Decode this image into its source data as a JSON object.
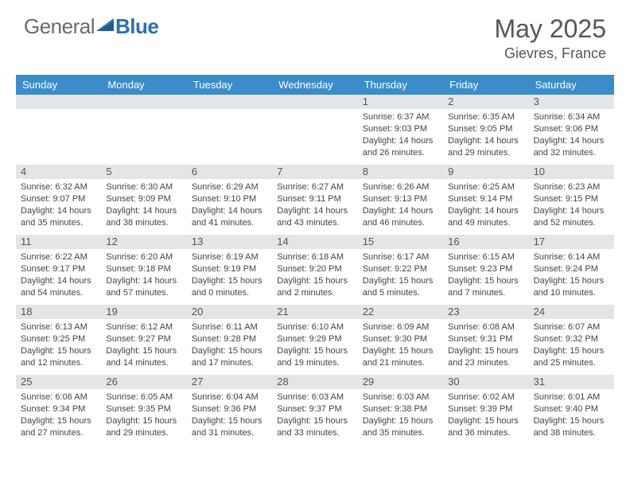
{
  "logo": {
    "general": "General",
    "blue": "Blue"
  },
  "title": "May 2025",
  "location": "Gievres, France",
  "colors": {
    "header_bar": "#3b8ccb",
    "day_bar": "#e4e5e6",
    "text": "#444444",
    "logo_gray": "#6a6a6a",
    "logo_blue": "#2b6fb0",
    "background": "#ffffff"
  },
  "weekdays": [
    "Sunday",
    "Monday",
    "Tuesday",
    "Wednesday",
    "Thursday",
    "Friday",
    "Saturday"
  ],
  "weeks": [
    [
      {
        "day": "",
        "sunrise": "",
        "sunset": "",
        "daylight": ""
      },
      {
        "day": "",
        "sunrise": "",
        "sunset": "",
        "daylight": ""
      },
      {
        "day": "",
        "sunrise": "",
        "sunset": "",
        "daylight": ""
      },
      {
        "day": "",
        "sunrise": "",
        "sunset": "",
        "daylight": ""
      },
      {
        "day": "1",
        "sunrise": "Sunrise: 6:37 AM",
        "sunset": "Sunset: 9:03 PM",
        "daylight": "Daylight: 14 hours and 26 minutes."
      },
      {
        "day": "2",
        "sunrise": "Sunrise: 6:35 AM",
        "sunset": "Sunset: 9:05 PM",
        "daylight": "Daylight: 14 hours and 29 minutes."
      },
      {
        "day": "3",
        "sunrise": "Sunrise: 6:34 AM",
        "sunset": "Sunset: 9:06 PM",
        "daylight": "Daylight: 14 hours and 32 minutes."
      }
    ],
    [
      {
        "day": "4",
        "sunrise": "Sunrise: 6:32 AM",
        "sunset": "Sunset: 9:07 PM",
        "daylight": "Daylight: 14 hours and 35 minutes."
      },
      {
        "day": "5",
        "sunrise": "Sunrise: 6:30 AM",
        "sunset": "Sunset: 9:09 PM",
        "daylight": "Daylight: 14 hours and 38 minutes."
      },
      {
        "day": "6",
        "sunrise": "Sunrise: 6:29 AM",
        "sunset": "Sunset: 9:10 PM",
        "daylight": "Daylight: 14 hours and 41 minutes."
      },
      {
        "day": "7",
        "sunrise": "Sunrise: 6:27 AM",
        "sunset": "Sunset: 9:11 PM",
        "daylight": "Daylight: 14 hours and 43 minutes."
      },
      {
        "day": "8",
        "sunrise": "Sunrise: 6:26 AM",
        "sunset": "Sunset: 9:13 PM",
        "daylight": "Daylight: 14 hours and 46 minutes."
      },
      {
        "day": "9",
        "sunrise": "Sunrise: 6:25 AM",
        "sunset": "Sunset: 9:14 PM",
        "daylight": "Daylight: 14 hours and 49 minutes."
      },
      {
        "day": "10",
        "sunrise": "Sunrise: 6:23 AM",
        "sunset": "Sunset: 9:15 PM",
        "daylight": "Daylight: 14 hours and 52 minutes."
      }
    ],
    [
      {
        "day": "11",
        "sunrise": "Sunrise: 6:22 AM",
        "sunset": "Sunset: 9:17 PM",
        "daylight": "Daylight: 14 hours and 54 minutes."
      },
      {
        "day": "12",
        "sunrise": "Sunrise: 6:20 AM",
        "sunset": "Sunset: 9:18 PM",
        "daylight": "Daylight: 14 hours and 57 minutes."
      },
      {
        "day": "13",
        "sunrise": "Sunrise: 6:19 AM",
        "sunset": "Sunset: 9:19 PM",
        "daylight": "Daylight: 15 hours and 0 minutes."
      },
      {
        "day": "14",
        "sunrise": "Sunrise: 6:18 AM",
        "sunset": "Sunset: 9:20 PM",
        "daylight": "Daylight: 15 hours and 2 minutes."
      },
      {
        "day": "15",
        "sunrise": "Sunrise: 6:17 AM",
        "sunset": "Sunset: 9:22 PM",
        "daylight": "Daylight: 15 hours and 5 minutes."
      },
      {
        "day": "16",
        "sunrise": "Sunrise: 6:15 AM",
        "sunset": "Sunset: 9:23 PM",
        "daylight": "Daylight: 15 hours and 7 minutes."
      },
      {
        "day": "17",
        "sunrise": "Sunrise: 6:14 AM",
        "sunset": "Sunset: 9:24 PM",
        "daylight": "Daylight: 15 hours and 10 minutes."
      }
    ],
    [
      {
        "day": "18",
        "sunrise": "Sunrise: 6:13 AM",
        "sunset": "Sunset: 9:25 PM",
        "daylight": "Daylight: 15 hours and 12 minutes."
      },
      {
        "day": "19",
        "sunrise": "Sunrise: 6:12 AM",
        "sunset": "Sunset: 9:27 PM",
        "daylight": "Daylight: 15 hours and 14 minutes."
      },
      {
        "day": "20",
        "sunrise": "Sunrise: 6:11 AM",
        "sunset": "Sunset: 9:28 PM",
        "daylight": "Daylight: 15 hours and 17 minutes."
      },
      {
        "day": "21",
        "sunrise": "Sunrise: 6:10 AM",
        "sunset": "Sunset: 9:29 PM",
        "daylight": "Daylight: 15 hours and 19 minutes."
      },
      {
        "day": "22",
        "sunrise": "Sunrise: 6:09 AM",
        "sunset": "Sunset: 9:30 PM",
        "daylight": "Daylight: 15 hours and 21 minutes."
      },
      {
        "day": "23",
        "sunrise": "Sunrise: 6:08 AM",
        "sunset": "Sunset: 9:31 PM",
        "daylight": "Daylight: 15 hours and 23 minutes."
      },
      {
        "day": "24",
        "sunrise": "Sunrise: 6:07 AM",
        "sunset": "Sunset: 9:32 PM",
        "daylight": "Daylight: 15 hours and 25 minutes."
      }
    ],
    [
      {
        "day": "25",
        "sunrise": "Sunrise: 6:06 AM",
        "sunset": "Sunset: 9:34 PM",
        "daylight": "Daylight: 15 hours and 27 minutes."
      },
      {
        "day": "26",
        "sunrise": "Sunrise: 6:05 AM",
        "sunset": "Sunset: 9:35 PM",
        "daylight": "Daylight: 15 hours and 29 minutes."
      },
      {
        "day": "27",
        "sunrise": "Sunrise: 6:04 AM",
        "sunset": "Sunset: 9:36 PM",
        "daylight": "Daylight: 15 hours and 31 minutes."
      },
      {
        "day": "28",
        "sunrise": "Sunrise: 6:03 AM",
        "sunset": "Sunset: 9:37 PM",
        "daylight": "Daylight: 15 hours and 33 minutes."
      },
      {
        "day": "29",
        "sunrise": "Sunrise: 6:03 AM",
        "sunset": "Sunset: 9:38 PM",
        "daylight": "Daylight: 15 hours and 35 minutes."
      },
      {
        "day": "30",
        "sunrise": "Sunrise: 6:02 AM",
        "sunset": "Sunset: 9:39 PM",
        "daylight": "Daylight: 15 hours and 36 minutes."
      },
      {
        "day": "31",
        "sunrise": "Sunrise: 6:01 AM",
        "sunset": "Sunset: 9:40 PM",
        "daylight": "Daylight: 15 hours and 38 minutes."
      }
    ]
  ]
}
